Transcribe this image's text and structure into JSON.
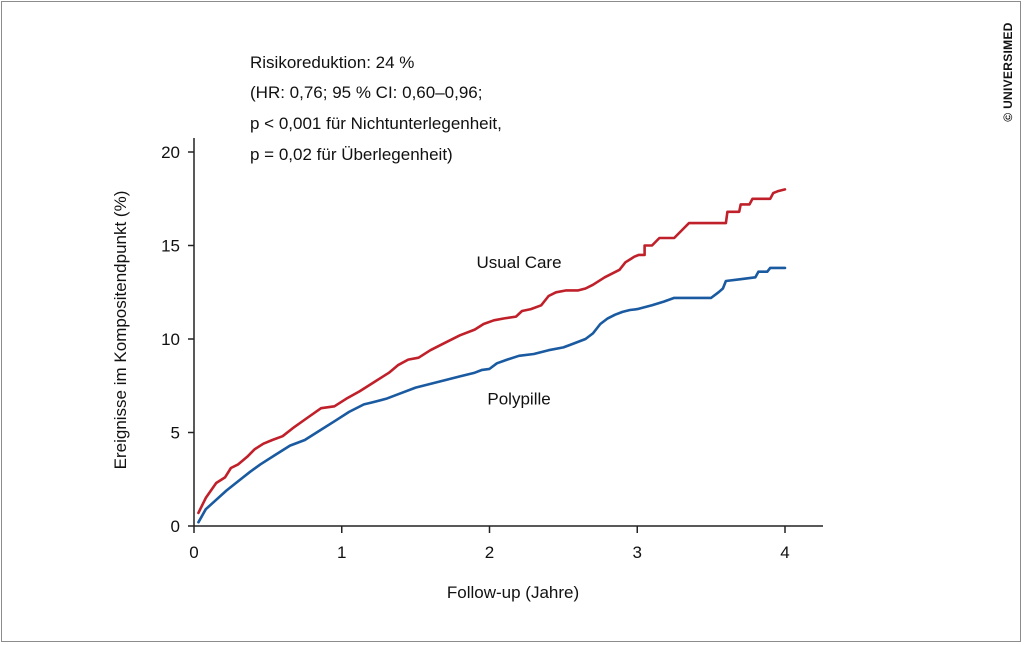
{
  "chart_data": {
    "type": "line",
    "xlabel": "Follow-up (Jahre)",
    "ylabel": "Ereignisse im Kompositendpunkt (%)",
    "xlim": [
      0,
      4
    ],
    "ylim": [
      0,
      20
    ],
    "x_ticks": [
      "0",
      "1",
      "2",
      "3",
      "4"
    ],
    "y_ticks": [
      "0",
      "5",
      "10",
      "15",
      "20"
    ],
    "grid": false,
    "legend": "none",
    "annotation_lines": [
      "Risikoreduktion: 24 %",
      "(HR: 0,76; 95 % CI: 0,60–0,96;",
      "p < 0,001 für Nichtunterlegenheit,",
      "p = 0,02 für Überlegenheit)"
    ],
    "series": [
      {
        "name": "Usual Care",
        "color": "#c0202a",
        "label_at": [
          2.2,
          13.8
        ],
        "x": [
          0.03,
          0.08,
          0.15,
          0.21,
          0.25,
          0.3,
          0.36,
          0.41,
          0.47,
          0.53,
          0.6,
          0.68,
          0.77,
          0.86,
          0.95,
          1.03,
          1.12,
          1.22,
          1.32,
          1.38,
          1.45,
          1.52,
          1.6,
          1.7,
          1.8,
          1.9,
          1.96,
          2.03,
          2.1,
          2.18,
          2.22,
          2.28,
          2.35,
          2.4,
          2.45,
          2.52,
          2.6,
          2.65,
          2.7,
          2.78,
          2.88,
          2.92,
          2.96,
          2.98,
          3.01,
          3.05,
          3.05,
          3.1,
          3.15,
          3.18,
          3.25,
          3.3,
          3.35,
          3.38,
          3.48,
          3.55,
          3.6,
          3.61,
          3.65,
          3.69,
          3.7,
          3.76,
          3.78,
          3.85,
          3.9,
          3.92,
          3.95,
          4.0
        ],
        "y": [
          0.7,
          1.5,
          2.3,
          2.6,
          3.1,
          3.3,
          3.7,
          4.1,
          4.4,
          4.6,
          4.8,
          5.3,
          5.8,
          6.3,
          6.4,
          6.8,
          7.2,
          7.7,
          8.2,
          8.6,
          8.9,
          9.0,
          9.4,
          9.8,
          10.2,
          10.5,
          10.8,
          11.0,
          11.1,
          11.2,
          11.5,
          11.6,
          11.8,
          12.3,
          12.5,
          12.6,
          12.6,
          12.7,
          12.9,
          13.3,
          13.7,
          14.1,
          14.3,
          14.4,
          14.5,
          14.5,
          15.0,
          15.0,
          15.4,
          15.4,
          15.4,
          15.8,
          16.2,
          16.2,
          16.2,
          16.2,
          16.2,
          16.8,
          16.8,
          16.8,
          17.2,
          17.2,
          17.5,
          17.5,
          17.5,
          17.8,
          17.9,
          18.0
        ]
      },
      {
        "name": "Polypille",
        "color": "#1a5aa0",
        "label_at": [
          2.2,
          6.5
        ],
        "x": [
          0.03,
          0.08,
          0.15,
          0.22,
          0.3,
          0.38,
          0.45,
          0.55,
          0.65,
          0.75,
          0.85,
          0.95,
          1.05,
          1.15,
          1.2,
          1.3,
          1.4,
          1.5,
          1.6,
          1.7,
          1.8,
          1.9,
          1.95,
          2.0,
          2.05,
          2.12,
          2.2,
          2.3,
          2.4,
          2.5,
          2.55,
          2.65,
          2.7,
          2.75,
          2.8,
          2.85,
          2.9,
          2.95,
          3.0,
          3.1,
          3.18,
          3.25,
          3.3,
          3.4,
          3.5,
          3.55,
          3.58,
          3.6,
          3.7,
          3.8,
          3.82,
          3.88,
          3.9,
          3.95,
          4.0
        ],
        "y": [
          0.2,
          0.9,
          1.4,
          1.9,
          2.4,
          2.9,
          3.3,
          3.8,
          4.3,
          4.6,
          5.1,
          5.6,
          6.1,
          6.5,
          6.6,
          6.8,
          7.1,
          7.4,
          7.6,
          7.8,
          8.0,
          8.2,
          8.35,
          8.4,
          8.7,
          8.9,
          9.1,
          9.2,
          9.4,
          9.55,
          9.7,
          10.0,
          10.3,
          10.8,
          11.1,
          11.3,
          11.45,
          11.55,
          11.6,
          11.8,
          12.0,
          12.2,
          12.2,
          12.2,
          12.2,
          12.5,
          12.7,
          13.1,
          13.2,
          13.3,
          13.6,
          13.6,
          13.8,
          13.8,
          13.8
        ]
      }
    ]
  },
  "copyright": "© UNIVERSIMED",
  "style": {
    "axis_color": "#222222",
    "border_color": "#8c8c8c"
  }
}
